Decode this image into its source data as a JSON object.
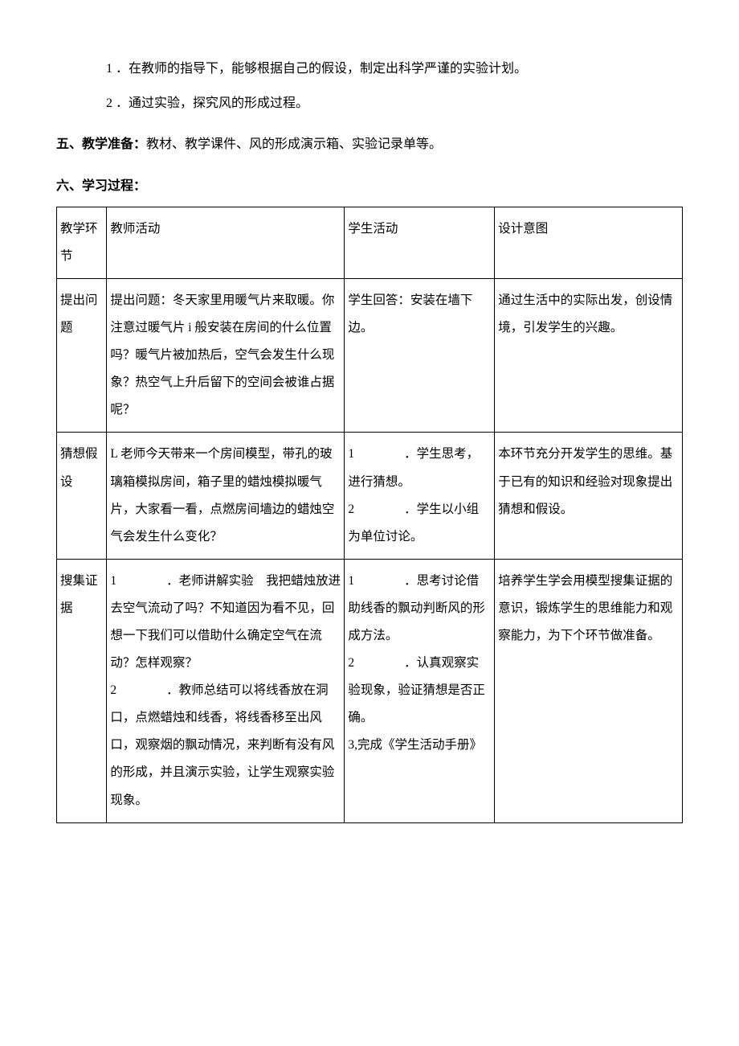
{
  "paragraphs": {
    "p1_num": "1",
    "p1_text": "．在教师的指导下，能够根据自己的假设，制定出科学严谨的实验计划。",
    "p2_num": "2",
    "p2_text": "．通过实验，探究风的形成过程。"
  },
  "section5": {
    "label": "五、教学准备：",
    "text": "教材、教学课件、风的形成演示箱、实验记录单等。"
  },
  "section6": {
    "label": "六、学习过程："
  },
  "table": {
    "header": {
      "c1": "教学环节",
      "c2": "教师活动",
      "c3": "学生活动",
      "c4": "设计意图"
    },
    "rows": [
      {
        "c1": "提出问题",
        "c2": "提出问题：冬天家里用暖气片来取暖。你注意过暖气片 i 般安装在房间的什么位置吗？暖气片被加热后，空气会发生什么现象？热空气上升后留下的空间会被谁占据呢？",
        "c3": "学生回答：安装在墙下边。",
        "c4": "通过生活中的实际出发，创设情境，引发学生的兴趣。"
      },
      {
        "c1": "猜想假设",
        "c2": "L 老师今天带来一个房间模型，带孔的玻璃箱模拟房间，箱子里的蜡烛模拟暖气片，大家看一看，点燃房间墙边的蜡烛空气会发生什么变化？",
        "c3_items": [
          {
            "num": "1",
            "text": "．学生思考，进行猜想。"
          },
          {
            "num": "2",
            "text": "．学生以小组为单位讨论。"
          }
        ],
        "c4": "本环节充分开发学生的思维。基于已有的知识和经验对现象提出猜想和假设。"
      },
      {
        "c1": "搜集证据",
        "c2_items": [
          {
            "num": "1",
            "text": "．老师讲解实验　我把蜡烛放进去空气流动了吗？不知道因为看不见，回想一下我们可以借助什么确定空气在流动？怎样观察？"
          },
          {
            "num": "2",
            "text": "．教师总结可以将线香放在洞口，点燃蜡烛和线香，将线香移至出风口，观察烟的飘动情况，来判断有没有风的形成，并且演示实验，让学生观察实验现象。"
          }
        ],
        "c3_items": [
          {
            "num": "1",
            "text": "．思考讨论借助线香的飘动判断风的形成方法。"
          },
          {
            "num": "2",
            "text": "．认真观察实验现象，验证猜想是否正确。"
          }
        ],
        "c3_tail": "3,完成《学生活动手册》",
        "c4": "培养学生学会用模型搜集证据的意识，锻炼学生的思维能力和观察能力，为下个环节做准备。"
      }
    ]
  }
}
